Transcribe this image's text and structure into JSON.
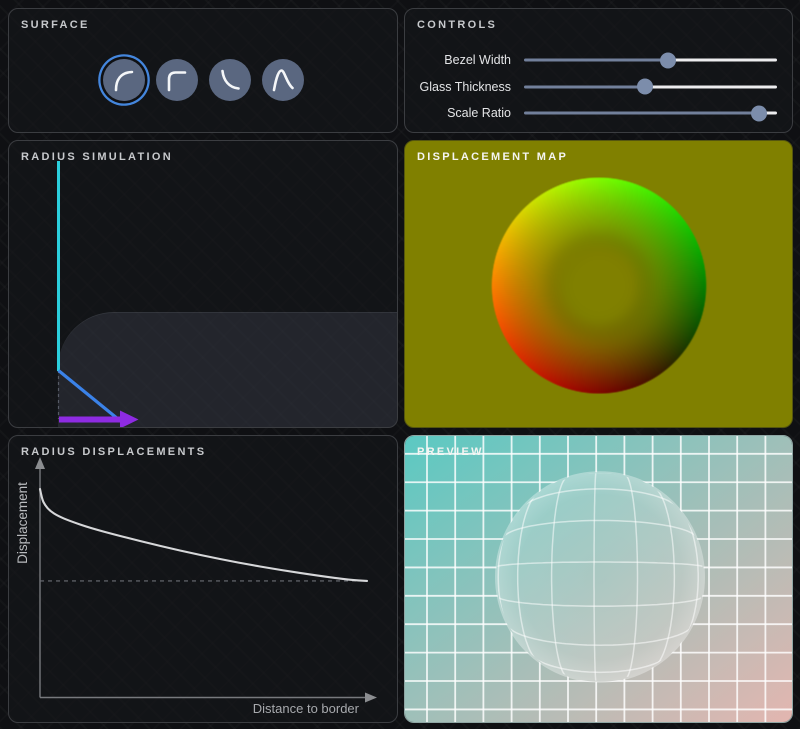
{
  "surface": {
    "title": "SURFACE",
    "selected_index": 0,
    "buttons": [
      {
        "name": "circular-bezel-profile"
      },
      {
        "name": "rounded-corner-bezel-profile"
      },
      {
        "name": "decay-bezel-profile"
      },
      {
        "name": "bump-bezel-profile"
      }
    ]
  },
  "controls": {
    "title": "CONTROLS",
    "sliders": [
      {
        "label": "Bezel Width",
        "percent": 57
      },
      {
        "label": "Glass Thickness",
        "percent": 48
      },
      {
        "label": "Scale Ratio",
        "percent": 93
      }
    ]
  },
  "radius_simulation": {
    "title": "RADIUS SIMULATION"
  },
  "displacement_map": {
    "title": "DISPLACEMENT MAP"
  },
  "radius_displacements": {
    "title": "RADIUS DISPLACEMENTS"
  },
  "preview": {
    "title": "PREVIEW"
  },
  "chart_data": {
    "type": "line",
    "title": "RADIUS DISPLACEMENTS",
    "xlabel": "Distance to border",
    "ylabel": "Displacement",
    "x_range": [
      0,
      1
    ],
    "grid": false,
    "axes_numeric": false,
    "series": [
      {
        "name": "displacement",
        "x": [
          0,
          0.006,
          0.015,
          0.031,
          0.055,
          0.092,
          0.153,
          0.245,
          0.367,
          0.489,
          0.612,
          0.734,
          0.856,
          0.948,
          1.0
        ],
        "y": [
          1.0,
          0.952,
          0.923,
          0.894,
          0.87,
          0.846,
          0.813,
          0.774,
          0.726,
          0.683,
          0.644,
          0.611,
          0.582,
          0.563,
          0.558
        ]
      }
    ],
    "baseline": {
      "style": "dashed",
      "y": 0.558
    }
  },
  "colors": {
    "cyan_axis": "#2bcfdd",
    "blue_vector": "#3b82e8",
    "purple_arrow": "#8e2be2",
    "dash_gray": "#565b66",
    "slider_fill": "#72809b",
    "slider_rest": "#ececee",
    "slider_handle": "#7c8dab",
    "selected_ring": "#4486dd",
    "neutral_map": "#808000",
    "preview_teal": "#5bc9c2",
    "preview_pink": "#e3b6b0",
    "grid_spacing": 28.2,
    "ball_radius": 105
  }
}
